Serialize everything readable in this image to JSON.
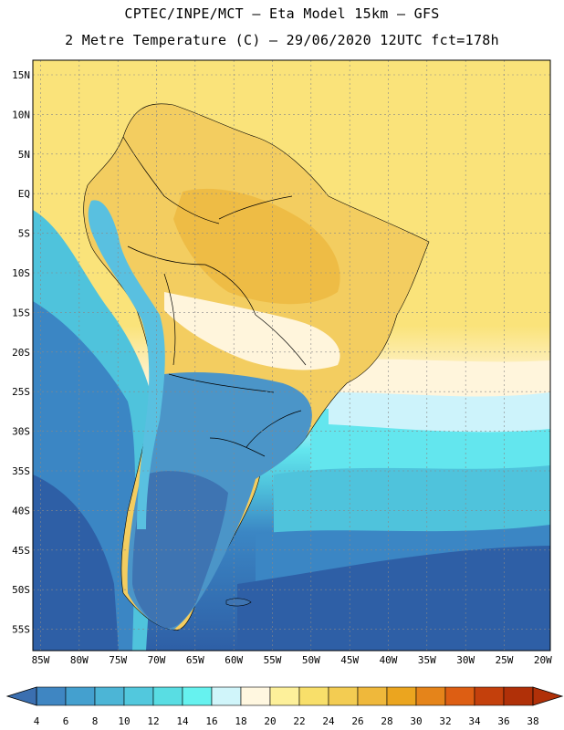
{
  "title": {
    "line1": "CPTEC/INPE/MCT –  Eta Model 15km – GFS",
    "line2": "2 Metre Temperature (C) – 29/06/2020 12UTC fct=178h"
  },
  "lat_labels": [
    "15N",
    "10N",
    "5N",
    "EQ",
    "5S",
    "10S",
    "15S",
    "20S",
    "25S",
    "30S",
    "35S",
    "40S",
    "45S",
    "50S",
    "55S"
  ],
  "lon_labels": [
    "85W",
    "80W",
    "75W",
    "70W",
    "65W",
    "60W",
    "55W",
    "50W",
    "45W",
    "40W",
    "35W",
    "30W",
    "25W",
    "20W"
  ],
  "legend": {
    "ticks": [
      "4",
      "6",
      "8",
      "10",
      "12",
      "14",
      "16",
      "18",
      "20",
      "22",
      "24",
      "26",
      "28",
      "30",
      "32",
      "34",
      "36",
      "38"
    ],
    "colors": [
      "#3b6fb0",
      "#3f86c2",
      "#44a0cf",
      "#4cb5d6",
      "#52c8dd",
      "#59dde3",
      "#66f2ef",
      "#d0f5fa",
      "#fff7e0",
      "#fdf09a",
      "#f8df6a",
      "#f3cc52",
      "#efb83b",
      "#eba51f",
      "#e5841a",
      "#dd5e13",
      "#c4400c",
      "#b03008"
    ]
  },
  "map_colors": {
    "ocean_south": "#2e5fa6",
    "ocean_mid": "#3b86c4",
    "ocean_cool": "#4fc3dc",
    "ocean_cyan": "#63e6ee",
    "ocean_pale": "#cdf3fb",
    "ocean_cream": "#fff5dc",
    "ocean_warm": "#fae37a",
    "land_hot": "#eebc45",
    "land_warm": "#f3cd60",
    "andes": "#4b95c8",
    "patagonia": "#3e74b2",
    "border": "#000000"
  }
}
